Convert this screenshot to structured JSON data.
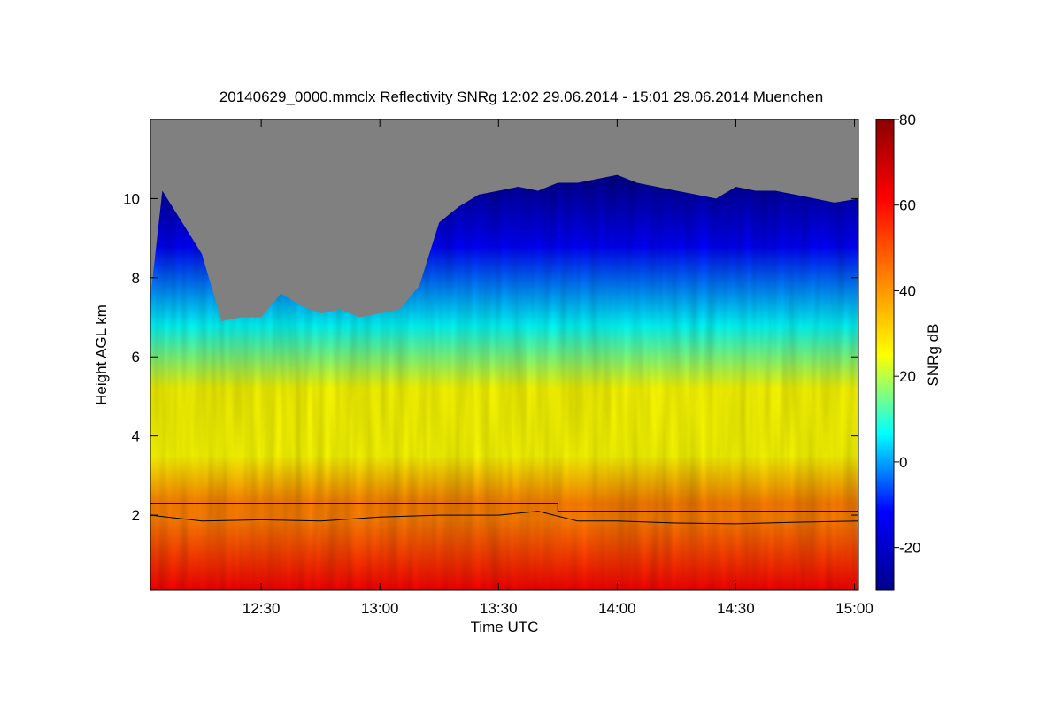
{
  "chart_data": {
    "type": "heatmap",
    "title": "20140629_0000.mmclx Reflectivity SNRg   12:02 29.06.2014 - 15:01 29.06.2014 Muenchen",
    "xlabel": "Time UTC",
    "ylabel": "Height AGL km",
    "colorbar_label": "SNRg dB",
    "xlim": [
      "12:02",
      "15:01"
    ],
    "ylim": [
      0.1,
      12.0
    ],
    "x_ticks": [
      "12:30",
      "13:00",
      "13:30",
      "14:00",
      "14:30",
      "15:00"
    ],
    "y_ticks": [
      2,
      4,
      6,
      8,
      10
    ],
    "colorbar_range": [
      -30,
      80
    ],
    "colorbar_ticks": [
      -20,
      0,
      20,
      40,
      60,
      80
    ],
    "no_signal_color": "#808080",
    "colormap": [
      "#00008b",
      "#0000ff",
      "#00ffff",
      "#ffff00",
      "#ff8000",
      "#ff0000",
      "#8b0000"
    ],
    "echo_top_km": [
      [
        "12:02",
        7.5
      ],
      [
        "12:05",
        10.2
      ],
      [
        "12:10",
        9.4
      ],
      [
        "12:15",
        8.6
      ],
      [
        "12:20",
        6.9
      ],
      [
        "12:25",
        7.0
      ],
      [
        "12:30",
        7.0
      ],
      [
        "12:35",
        7.6
      ],
      [
        "12:40",
        7.3
      ],
      [
        "12:45",
        7.1
      ],
      [
        "12:50",
        7.2
      ],
      [
        "12:55",
        7.0
      ],
      [
        "13:00",
        7.1
      ],
      [
        "13:05",
        7.2
      ],
      [
        "13:10",
        7.8
      ],
      [
        "13:15",
        9.4
      ],
      [
        "13:20",
        9.8
      ],
      [
        "13:25",
        10.1
      ],
      [
        "13:30",
        10.2
      ],
      [
        "13:35",
        10.3
      ],
      [
        "13:40",
        10.2
      ],
      [
        "13:45",
        10.4
      ],
      [
        "13:50",
        10.4
      ],
      [
        "13:55",
        10.5
      ],
      [
        "14:00",
        10.6
      ],
      [
        "14:05",
        10.4
      ],
      [
        "14:10",
        10.3
      ],
      [
        "14:15",
        10.2
      ],
      [
        "14:20",
        10.1
      ],
      [
        "14:25",
        10.0
      ],
      [
        "14:30",
        10.3
      ],
      [
        "14:35",
        10.2
      ],
      [
        "14:40",
        10.2
      ],
      [
        "14:45",
        10.1
      ],
      [
        "14:50",
        10.0
      ],
      [
        "14:55",
        9.9
      ],
      [
        "15:01",
        10.0
      ]
    ],
    "upper_line_km": [
      [
        "12:02",
        2.3
      ],
      [
        "13:45",
        2.3
      ],
      [
        "13:45",
        2.1
      ],
      [
        "15:01",
        2.1
      ]
    ],
    "lower_line_km": [
      [
        "12:02",
        2.0
      ],
      [
        "12:15",
        1.85
      ],
      [
        "12:30",
        1.88
      ],
      [
        "12:45",
        1.85
      ],
      [
        "13:00",
        1.95
      ],
      [
        "13:15",
        2.0
      ],
      [
        "13:30",
        2.0
      ],
      [
        "13:40",
        2.1
      ],
      [
        "13:50",
        1.85
      ],
      [
        "14:00",
        1.85
      ],
      [
        "14:15",
        1.8
      ],
      [
        "14:30",
        1.78
      ],
      [
        "14:45",
        1.82
      ],
      [
        "15:01",
        1.85
      ]
    ]
  }
}
